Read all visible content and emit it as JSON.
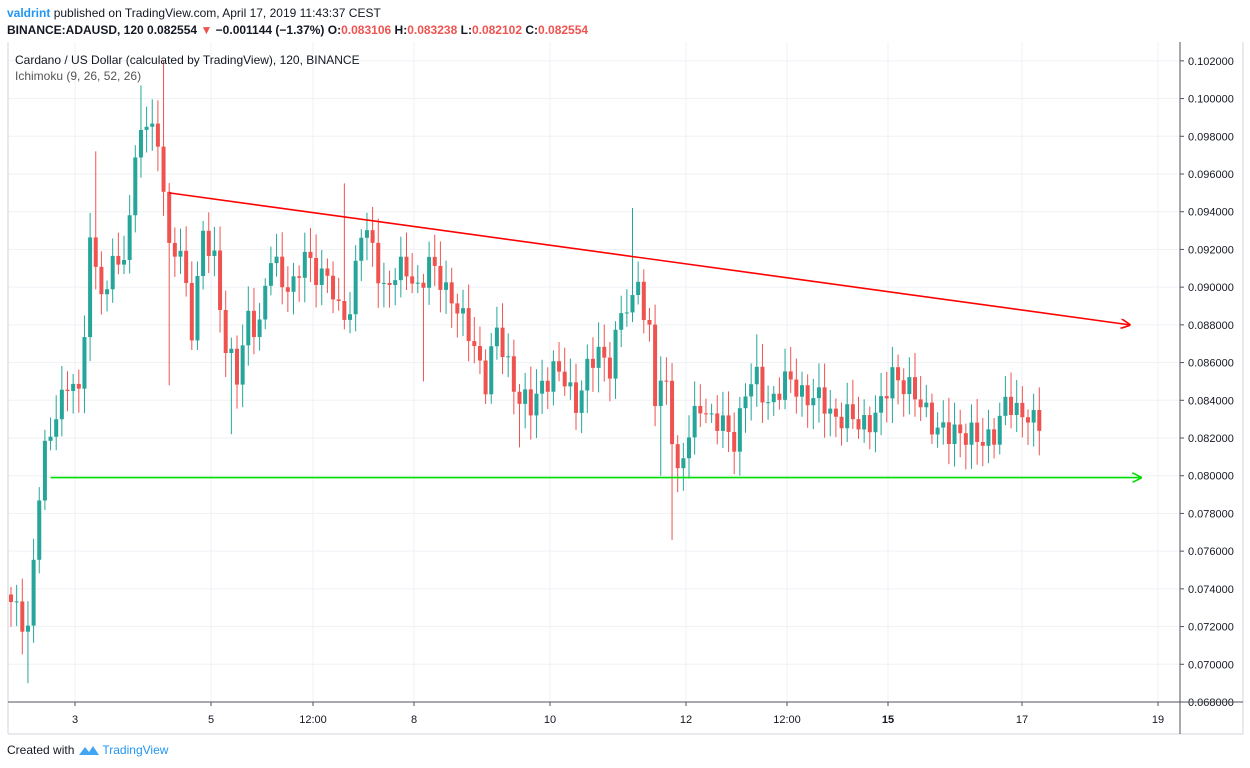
{
  "header": {
    "author": "valdrint",
    "published_text": "published on TradingView.com, April 17, 2019 11:43:37 CEST"
  },
  "ticker": {
    "symbol": "BINANCE:ADAUSD, 120",
    "last": "0.082554",
    "change_arrow": "▼",
    "change": "−0.001144 (−1.37%)",
    "o_label": "O:",
    "o_value": "0.083106",
    "h_label": "H:",
    "h_value": "0.083238",
    "l_label": "L:",
    "l_value": "0.082102",
    "c_label": "C:",
    "c_value": "0.082554"
  },
  "legend": {
    "title": "Cardano / US Dollar (calculated by TradingView), 120, BINANCE",
    "indicator": "Ichimoku (9, 26, 52, 26)"
  },
  "footer": {
    "created_with": "Created with",
    "brand": "TradingView"
  },
  "colors": {
    "up": "#26a69a",
    "down": "#ef5350",
    "resistance": "#ff0000",
    "support": "#00e000",
    "grid": "#eef1f5"
  },
  "chart_data": {
    "type": "candlestick",
    "title": "Cardano / US Dollar (calculated by TradingView), 120, BINANCE",
    "ylim": [
      0.068,
      0.103
    ],
    "y_ticks": [
      "0.068000",
      "0.070000",
      "0.072000",
      "0.074000",
      "0.076000",
      "0.078000",
      "0.080000",
      "0.082000",
      "0.084000",
      "0.086000",
      "0.088000",
      "0.090000",
      "0.092000",
      "0.094000",
      "0.096000",
      "0.098000",
      "0.100000",
      "0.102000"
    ],
    "x_tick_labels": [
      {
        "label": "3",
        "bold": false
      },
      {
        "label": "5",
        "bold": false
      },
      {
        "label": "12:00",
        "bold": false
      },
      {
        "label": "8",
        "bold": false
      },
      {
        "label": "10",
        "bold": false
      },
      {
        "label": "12",
        "bold": false
      },
      {
        "label": "12:00",
        "bold": false
      },
      {
        "label": "15",
        "bold": true
      },
      {
        "label": "17",
        "bold": false
      },
      {
        "label": "19",
        "bold": false
      }
    ],
    "close_path": [
      [
        0,
        0.073
      ],
      [
        2,
        0.0725
      ],
      [
        3,
        0.072
      ],
      [
        5,
        0.079
      ],
      [
        6,
        0.081
      ],
      [
        8,
        0.0835
      ],
      [
        10,
        0.085
      ],
      [
        12,
        0.084
      ],
      [
        13,
        0.088
      ],
      [
        14,
        0.0925
      ],
      [
        16,
        0.09
      ],
      [
        17,
        0.089
      ],
      [
        18,
        0.0918
      ],
      [
        20,
        0.0912
      ],
      [
        21,
        0.0945
      ],
      [
        22,
        0.0965
      ],
      [
        24,
        0.099
      ],
      [
        26,
        0.0978
      ],
      [
        27,
        0.0955
      ],
      [
        28,
        0.0915
      ],
      [
        30,
        0.092
      ],
      [
        32,
        0.088
      ],
      [
        34,
        0.0925
      ],
      [
        36,
        0.0915
      ],
      [
        38,
        0.087
      ],
      [
        40,
        0.085
      ],
      [
        42,
        0.0885
      ],
      [
        44,
        0.088
      ],
      [
        46,
        0.0915
      ],
      [
        48,
        0.0905
      ],
      [
        50,
        0.09
      ],
      [
        52,
        0.0915
      ],
      [
        54,
        0.091
      ],
      [
        56,
        0.0905
      ],
      [
        58,
        0.0885
      ],
      [
        60,
        0.089
      ],
      [
        62,
        0.093
      ],
      [
        64,
        0.092
      ],
      [
        66,
        0.09
      ],
      [
        68,
        0.0905
      ],
      [
        70,
        0.091
      ],
      [
        72,
        0.09
      ],
      [
        74,
        0.091
      ],
      [
        76,
        0.0905
      ],
      [
        78,
        0.0895
      ],
      [
        80,
        0.088
      ],
      [
        82,
        0.087
      ],
      [
        84,
        0.085
      ],
      [
        86,
        0.0875
      ],
      [
        88,
        0.086
      ],
      [
        90,
        0.084
      ],
      [
        92,
        0.0835
      ],
      [
        94,
        0.085
      ],
      [
        96,
        0.0855
      ],
      [
        98,
        0.085
      ],
      [
        100,
        0.084
      ],
      [
        102,
        0.0855
      ],
      [
        104,
        0.0865
      ],
      [
        106,
        0.086
      ],
      [
        108,
        0.0885
      ],
      [
        110,
        0.089
      ],
      [
        111,
        0.091
      ],
      [
        112,
        0.0885
      ],
      [
        113,
        0.0875
      ],
      [
        114,
        0.084
      ],
      [
        116,
        0.085
      ],
      [
        118,
        0.08
      ],
      [
        120,
        0.082
      ],
      [
        122,
        0.084
      ],
      [
        124,
        0.083
      ],
      [
        126,
        0.0825
      ],
      [
        128,
        0.082
      ],
      [
        130,
        0.0845
      ],
      [
        132,
        0.085
      ],
      [
        134,
        0.084
      ],
      [
        136,
        0.0845
      ],
      [
        138,
        0.085
      ],
      [
        140,
        0.0845
      ],
      [
        142,
        0.084
      ],
      [
        144,
        0.0838
      ],
      [
        146,
        0.0832
      ],
      [
        148,
        0.083
      ],
      [
        150,
        0.0828
      ],
      [
        152,
        0.083
      ],
      [
        154,
        0.0835
      ],
      [
        156,
        0.0855
      ],
      [
        158,
        0.085
      ],
      [
        160,
        0.084
      ],
      [
        162,
        0.0835
      ],
      [
        164,
        0.0825
      ],
      [
        166,
        0.082
      ],
      [
        168,
        0.0825
      ],
      [
        170,
        0.0822
      ],
      [
        172,
        0.0815
      ],
      [
        174,
        0.0825
      ],
      [
        176,
        0.0838
      ],
      [
        178,
        0.0832
      ],
      [
        180,
        0.0835
      ],
      [
        181,
        0.083
      ],
      [
        182,
        0.0826
      ]
    ],
    "spikes": [
      {
        "i": 3,
        "low": 0.069
      },
      {
        "i": 15,
        "high": 0.0972
      },
      {
        "i": 23,
        "high": 0.1007
      },
      {
        "i": 27,
        "high": 0.102
      },
      {
        "i": 28,
        "low": 0.0848
      },
      {
        "i": 39,
        "low": 0.0822
      },
      {
        "i": 59,
        "high": 0.0955
      },
      {
        "i": 73,
        "low": 0.085
      },
      {
        "i": 90,
        "low": 0.0815
      },
      {
        "i": 110,
        "high": 0.0942
      },
      {
        "i": 117,
        "low": 0.0766
      },
      {
        "i": 115,
        "low": 0.08
      },
      {
        "i": 132,
        "high": 0.0875
      }
    ],
    "annotations": [
      {
        "name": "resistance-trendline",
        "color": "#ff0000",
        "from": {
          "i": 28,
          "y": 0.095
        },
        "to": {
          "i": 198,
          "y": 0.088
        },
        "arrow": true
      },
      {
        "name": "support-line",
        "color": "#00e000",
        "from": {
          "i": 7,
          "y": 0.0799
        },
        "to": {
          "i": 200,
          "y": 0.0799
        },
        "arrow": true
      }
    ]
  }
}
